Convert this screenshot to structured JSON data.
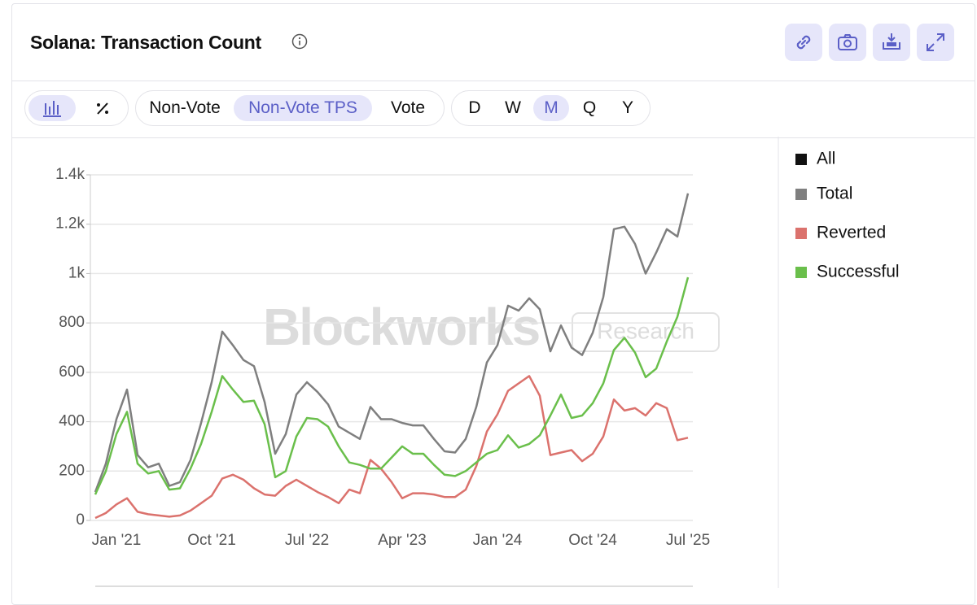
{
  "header": {
    "title": "Solana: Transaction Count"
  },
  "toolbar": {
    "metrics": [
      "Non-Vote",
      "Non-Vote TPS",
      "Vote"
    ],
    "metric_selected": 1,
    "periods": [
      "D",
      "W",
      "M",
      "Q",
      "Y"
    ],
    "period_selected": 2
  },
  "watermark": {
    "brand": "Blockworks",
    "tag": "Research"
  },
  "chart_data": {
    "type": "line",
    "categories": [
      null,
      null,
      "Jan '21",
      null,
      null,
      null,
      null,
      null,
      null,
      null,
      null,
      "Oct '21",
      null,
      null,
      null,
      null,
      null,
      null,
      null,
      null,
      "Jul '22",
      null,
      null,
      null,
      null,
      null,
      null,
      null,
      null,
      "Apr '23",
      null,
      null,
      null,
      null,
      null,
      null,
      null,
      null,
      "Jan '24",
      null,
      null,
      null,
      null,
      null,
      null,
      null,
      null,
      "Oct '24",
      null,
      null,
      null,
      null,
      null,
      null,
      null,
      null,
      "Jul '25"
    ],
    "ylim": [
      0,
      1400
    ],
    "yticks": [
      0,
      200,
      400,
      600,
      800,
      {
        "value": 1000,
        "label": "1k"
      },
      {
        "value": 1200,
        "label": "1.2k"
      },
      {
        "value": 1400,
        "label": "1.4k"
      }
    ],
    "grid": true,
    "legend": "right",
    "series": [
      {
        "name": "All",
        "color": "#111111",
        "values": [
          null,
          null,
          null,
          null,
          null,
          null,
          null,
          null,
          null,
          null,
          null,
          null,
          null,
          null,
          null,
          null,
          null,
          null,
          null,
          null,
          null,
          null,
          null,
          null,
          null,
          null,
          null,
          null,
          null,
          null,
          null,
          null,
          null,
          null,
          null,
          null,
          null,
          null,
          null,
          null,
          null,
          null,
          null,
          null,
          null,
          null,
          null,
          null,
          null,
          null,
          null,
          null,
          null,
          null,
          null,
          null,
          null
        ]
      },
      {
        "name": "Total",
        "color": "#7f7f7f",
        "values": [
          115,
          230,
          410,
          530,
          265,
          215,
          230,
          140,
          155,
          245,
          395,
          560,
          765,
          710,
          650,
          625,
          480,
          270,
          350,
          510,
          560,
          520,
          470,
          380,
          355,
          330,
          460,
          410,
          410,
          395,
          385,
          385,
          330,
          280,
          275,
          330,
          460,
          640,
          710,
          870,
          850,
          900,
          855,
          685,
          790,
          700,
          670,
          760,
          905,
          1180,
          1190,
          1120,
          1000,
          1085,
          1180,
          1150,
          1325
        ]
      },
      {
        "name": "Reverted",
        "color": "#db726d",
        "values": [
          10,
          30,
          65,
          90,
          35,
          25,
          20,
          15,
          20,
          40,
          70,
          100,
          170,
          185,
          165,
          130,
          105,
          100,
          140,
          165,
          140,
          115,
          95,
          70,
          125,
          110,
          245,
          210,
          155,
          90,
          110,
          110,
          105,
          95,
          95,
          125,
          220,
          360,
          430,
          525,
          555,
          585,
          505,
          265,
          275,
          285,
          240,
          270,
          340,
          490,
          445,
          455,
          425,
          475,
          455,
          325,
          335
        ]
      },
      {
        "name": "Successful",
        "color": "#6abf4b",
        "values": [
          105,
          200,
          350,
          440,
          230,
          190,
          200,
          125,
          130,
          210,
          310,
          440,
          585,
          530,
          480,
          485,
          390,
          175,
          200,
          340,
          415,
          410,
          380,
          300,
          235,
          225,
          210,
          210,
          255,
          300,
          270,
          270,
          225,
          185,
          180,
          200,
          235,
          270,
          285,
          345,
          295,
          310,
          345,
          425,
          510,
          415,
          425,
          475,
          555,
          690,
          740,
          680,
          580,
          615,
          725,
          825,
          985
        ]
      }
    ]
  }
}
